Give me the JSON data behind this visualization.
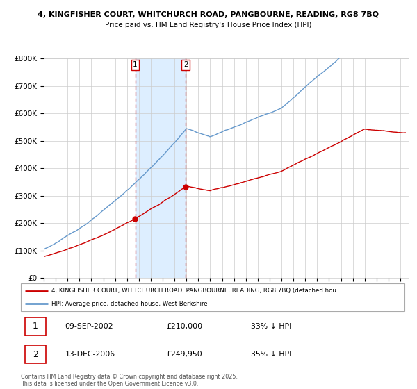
{
  "title1": "4, KINGFISHER COURT, WHITCHURCH ROAD, PANGBOURNE, READING, RG8 7BQ",
  "title2": "Price paid vs. HM Land Registry's House Price Index (HPI)",
  "ylim": [
    0,
    800000
  ],
  "yticks": [
    0,
    100000,
    200000,
    300000,
    400000,
    500000,
    600000,
    700000,
    800000
  ],
  "ytick_labels": [
    "£0",
    "£100K",
    "£200K",
    "£300K",
    "£400K",
    "£500K",
    "£600K",
    "£700K",
    "£800K"
  ],
  "xlim_start": 1995.0,
  "xlim_end": 2025.7,
  "sale1_year": 2002.69,
  "sale1_date": "09-SEP-2002",
  "sale1_price": "£210,000",
  "sale1_hpi": "33% ↓ HPI",
  "sale1_price_val": 210000,
  "sale2_year": 2006.95,
  "sale2_date": "13-DEC-2006",
  "sale2_price": "£249,950",
  "sale2_hpi": "35% ↓ HPI",
  "sale2_price_val": 249950,
  "red_line_color": "#cc0000",
  "blue_line_color": "#6699cc",
  "shade_color": "#ddeeff",
  "grid_color": "#cccccc",
  "background_color": "#ffffff",
  "legend_label_red": "4, KINGFISHER COURT, WHITCHURCH ROAD, PANGBOURNE, READING, RG8 7BQ (detached hou",
  "legend_label_blue": "HPI: Average price, detached house, West Berkshire",
  "footer": "Contains HM Land Registry data © Crown copyright and database right 2025.\nThis data is licensed under the Open Government Licence v3.0."
}
